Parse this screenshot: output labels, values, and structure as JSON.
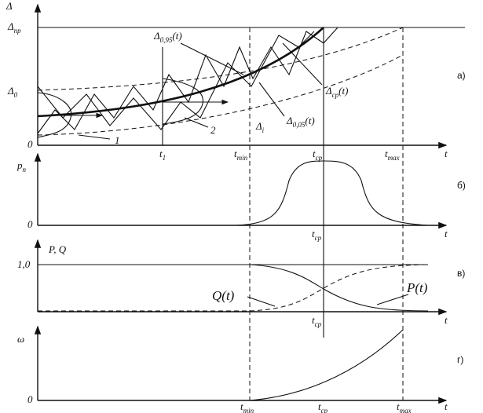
{
  "panel_a": {
    "tag": "а)",
    "axis_y": {
      "text": "Δ"
    },
    "axis_x": {
      "text": "t"
    },
    "origin": {
      "text": "0"
    },
    "level_limit": {
      "text": "Δ",
      "sub": "пр"
    },
    "level_initial": {
      "text": "Δ",
      "sub": "0"
    },
    "curve_upper": {
      "text": "Δ",
      "sub": "0,95",
      "arg": "(t)"
    },
    "curve_mean": {
      "text": "Δ",
      "sub": "ср",
      "arg": "(t)"
    },
    "curve_lower": {
      "text": "Δ",
      "sub": "0,05",
      "arg": "(t)"
    },
    "delta_i": {
      "text": "Δ",
      "sub": "i"
    },
    "callout_1": {
      "text": "1"
    },
    "callout_2": {
      "text": "2"
    },
    "t_1": {
      "text": "t",
      "sub": "1"
    },
    "t_min": {
      "text": "t",
      "sub": "min"
    },
    "t_cp": {
      "text": "t",
      "sub": "ср"
    },
    "t_max": {
      "text": "t",
      "sub": "max"
    }
  },
  "panel_b": {
    "tag": "б)",
    "axis_y": {
      "text": "p",
      "sub": "n"
    },
    "axis_x": {
      "text": "t"
    },
    "origin": {
      "text": "0"
    },
    "t_cp": {
      "text": "t",
      "sub": "ср"
    }
  },
  "panel_c": {
    "tag": "в)",
    "axis_y": {
      "text": "P, Q"
    },
    "axis_x": {
      "text": "t"
    },
    "level_one": {
      "text": "1,0"
    },
    "curve_q": {
      "text": "Q(t)"
    },
    "curve_p": {
      "text": "P(t)"
    },
    "t_cp": {
      "text": "t",
      "sub": "ср"
    }
  },
  "panel_d": {
    "tag": "г)",
    "axis_y": {
      "text": "ω"
    },
    "axis_x": {
      "text": "t"
    },
    "origin": {
      "text": "0"
    },
    "t_min": {
      "text": "t",
      "sub": "min"
    },
    "t_cp": {
      "text": "t",
      "sub": "ср"
    },
    "t_max": {
      "text": "t",
      "sub": "max"
    }
  }
}
